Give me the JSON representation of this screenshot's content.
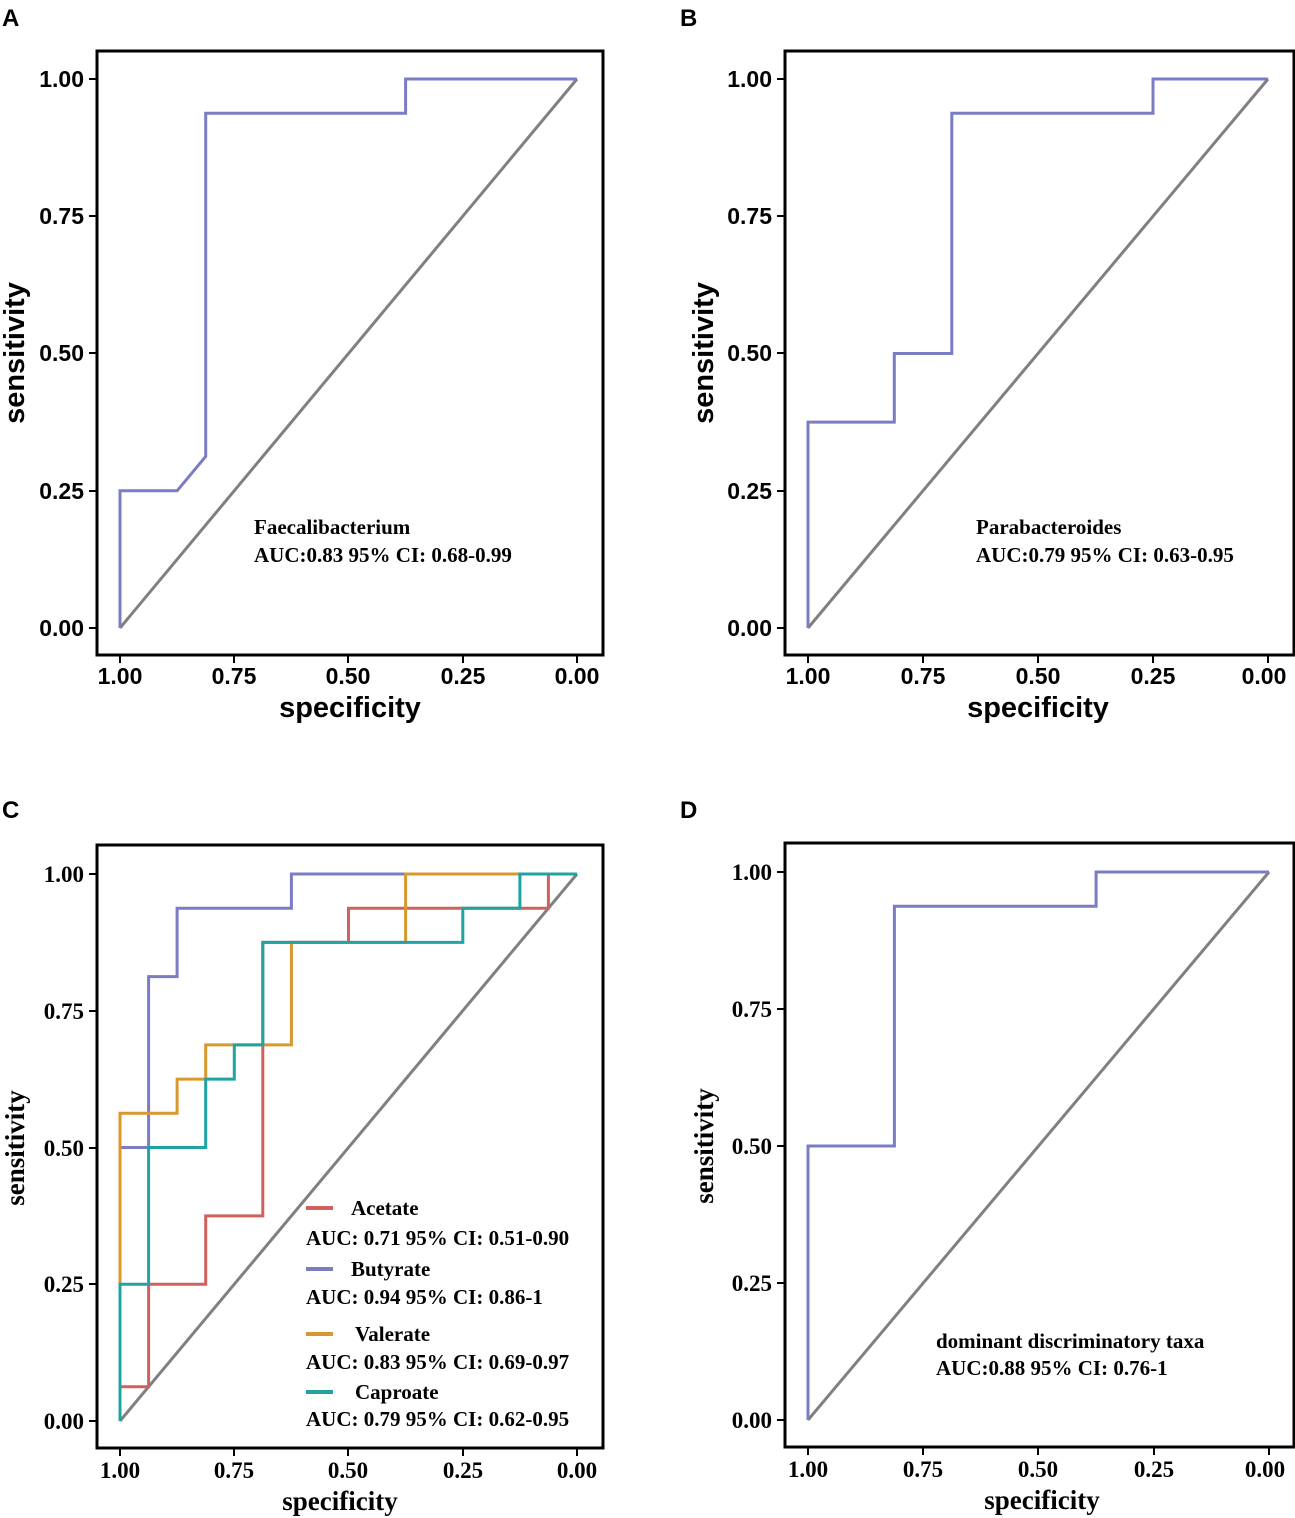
{
  "figure": {
    "colors": {
      "diagonal": "#808080",
      "frame": "#000000",
      "single_curve": "#7A7CC4"
    }
  },
  "chart_data": [
    {
      "panel": "A",
      "type": "line",
      "title": "",
      "xlabel": "specificity",
      "ylabel": "sensitivity",
      "xlim": [
        1.0,
        0.0
      ],
      "ylim": [
        0.0,
        1.0
      ],
      "x_reversed": true,
      "xticks": [
        "1.00",
        "0.75",
        "0.50",
        "0.25",
        "0.00"
      ],
      "yticks": [
        "0.00",
        "0.25",
        "0.50",
        "0.75",
        "1.00"
      ],
      "grid": false,
      "annotation": [
        "Faecalibacterium",
        "AUC:0.83  95% CI: 0.68-0.99"
      ],
      "series": [
        {
          "name": "Faecalibacterium",
          "color": "#7A7CC4",
          "specificity": [
            1.0,
            1.0,
            0.875,
            0.8125,
            0.8125,
            0.375,
            0.375,
            0.0
          ],
          "sensitivity": [
            0.0,
            0.25,
            0.25,
            0.3125,
            0.9375,
            0.9375,
            1.0,
            1.0
          ]
        }
      ]
    },
    {
      "panel": "B",
      "type": "line",
      "title": "",
      "xlabel": "specificity",
      "ylabel": "sensitivity",
      "xlim": [
        1.0,
        0.0
      ],
      "ylim": [
        0.0,
        1.0
      ],
      "x_reversed": true,
      "xticks": [
        "1.00",
        "0.75",
        "0.50",
        "0.25",
        "0.00"
      ],
      "yticks": [
        "0.00",
        "0.25",
        "0.50",
        "0.75",
        "1.00"
      ],
      "grid": false,
      "annotation": [
        "Parabacteroides",
        "AUC:0.79  95% CI: 0.63-0.95"
      ],
      "series": [
        {
          "name": "Parabacteroides",
          "color": "#7A7CC4",
          "specificity": [
            1.0,
            1.0,
            0.8125,
            0.8125,
            0.6875,
            0.6875,
            0.25,
            0.25,
            0.0
          ],
          "sensitivity": [
            0.0,
            0.375,
            0.375,
            0.5,
            0.5,
            0.9375,
            0.9375,
            1.0,
            1.0
          ]
        }
      ]
    },
    {
      "panel": "C",
      "type": "line",
      "title": "",
      "xlabel": "specificity",
      "ylabel": "sensitivity",
      "xlim": [
        1.0,
        0.0
      ],
      "ylim": [
        0.0,
        1.0
      ],
      "x_reversed": true,
      "xticks": [
        "1.00",
        "0.75",
        "0.50",
        "0.25",
        "0.00"
      ],
      "yticks": [
        "0.00",
        "0.25",
        "0.50",
        "0.75",
        "1.00"
      ],
      "grid": false,
      "legend_position": "bottom-right",
      "series": [
        {
          "name": "Acetate",
          "auc_label": "AUC: 0.71 95% CI: 0.51-0.90",
          "color": "#D0625E",
          "specificity": [
            1.0,
            1.0,
            0.9375,
            0.9375,
            0.8125,
            0.8125,
            0.6875,
            0.6875,
            0.5,
            0.5,
            0.0625,
            0.0625,
            0.0
          ],
          "sensitivity": [
            0.0,
            0.0625,
            0.0625,
            0.25,
            0.25,
            0.375,
            0.375,
            0.875,
            0.875,
            0.9375,
            0.9375,
            1.0,
            1.0
          ]
        },
        {
          "name": "Butyrate",
          "auc_label": "AUC: 0.94 95% CI: 0.86-1",
          "color": "#7A7CC4",
          "specificity": [
            1.0,
            1.0,
            0.9375,
            0.9375,
            0.875,
            0.875,
            0.625,
            0.625,
            0.0
          ],
          "sensitivity": [
            0.0,
            0.5,
            0.5,
            0.8125,
            0.8125,
            0.9375,
            0.9375,
            1.0,
            1.0
          ]
        },
        {
          "name": "Valerate",
          "auc_label": "AUC: 0.83 95% CI: 0.69-0.97",
          "color": "#D9982E",
          "specificity": [
            1.0,
            1.0,
            0.875,
            0.875,
            0.8125,
            0.8125,
            0.625,
            0.625,
            0.375,
            0.375,
            0.0
          ],
          "sensitivity": [
            0.25,
            0.5625,
            0.5625,
            0.625,
            0.625,
            0.6875,
            0.6875,
            0.875,
            0.875,
            1.0,
            1.0
          ]
        },
        {
          "name": "Caproate",
          "auc_label": "AUC: 0.79 95% CI: 0.62-0.95",
          "color": "#21A3A3",
          "specificity": [
            1.0,
            1.0,
            0.9375,
            0.9375,
            0.8125,
            0.8125,
            0.75,
            0.75,
            0.6875,
            0.6875,
            0.25,
            0.25,
            0.125,
            0.125,
            0.0
          ],
          "sensitivity": [
            0.0,
            0.25,
            0.25,
            0.5,
            0.5,
            0.625,
            0.625,
            0.6875,
            0.6875,
            0.875,
            0.875,
            0.9375,
            0.9375,
            1.0,
            1.0
          ]
        }
      ]
    },
    {
      "panel": "D",
      "type": "line",
      "title": "",
      "xlabel": "specificity",
      "ylabel": "sensitivity",
      "xlim": [
        1.0,
        0.0
      ],
      "ylim": [
        0.0,
        1.0
      ],
      "x_reversed": true,
      "xticks": [
        "1.00",
        "0.75",
        "0.50",
        "0.25",
        "0.00"
      ],
      "yticks": [
        "0.00",
        "0.25",
        "0.50",
        "0.75",
        "1.00"
      ],
      "grid": false,
      "annotation": [
        "dominant discriminatory taxa",
        "AUC:0.88  95% CI: 0.76-1"
      ],
      "series": [
        {
          "name": "dominant discriminatory taxa",
          "color": "#7A7CC4",
          "specificity": [
            1.0,
            1.0,
            0.8125,
            0.8125,
            0.375,
            0.375,
            0.0
          ],
          "sensitivity": [
            0.0,
            0.5,
            0.5,
            0.9375,
            0.9375,
            1.0,
            1.0
          ]
        }
      ]
    }
  ]
}
